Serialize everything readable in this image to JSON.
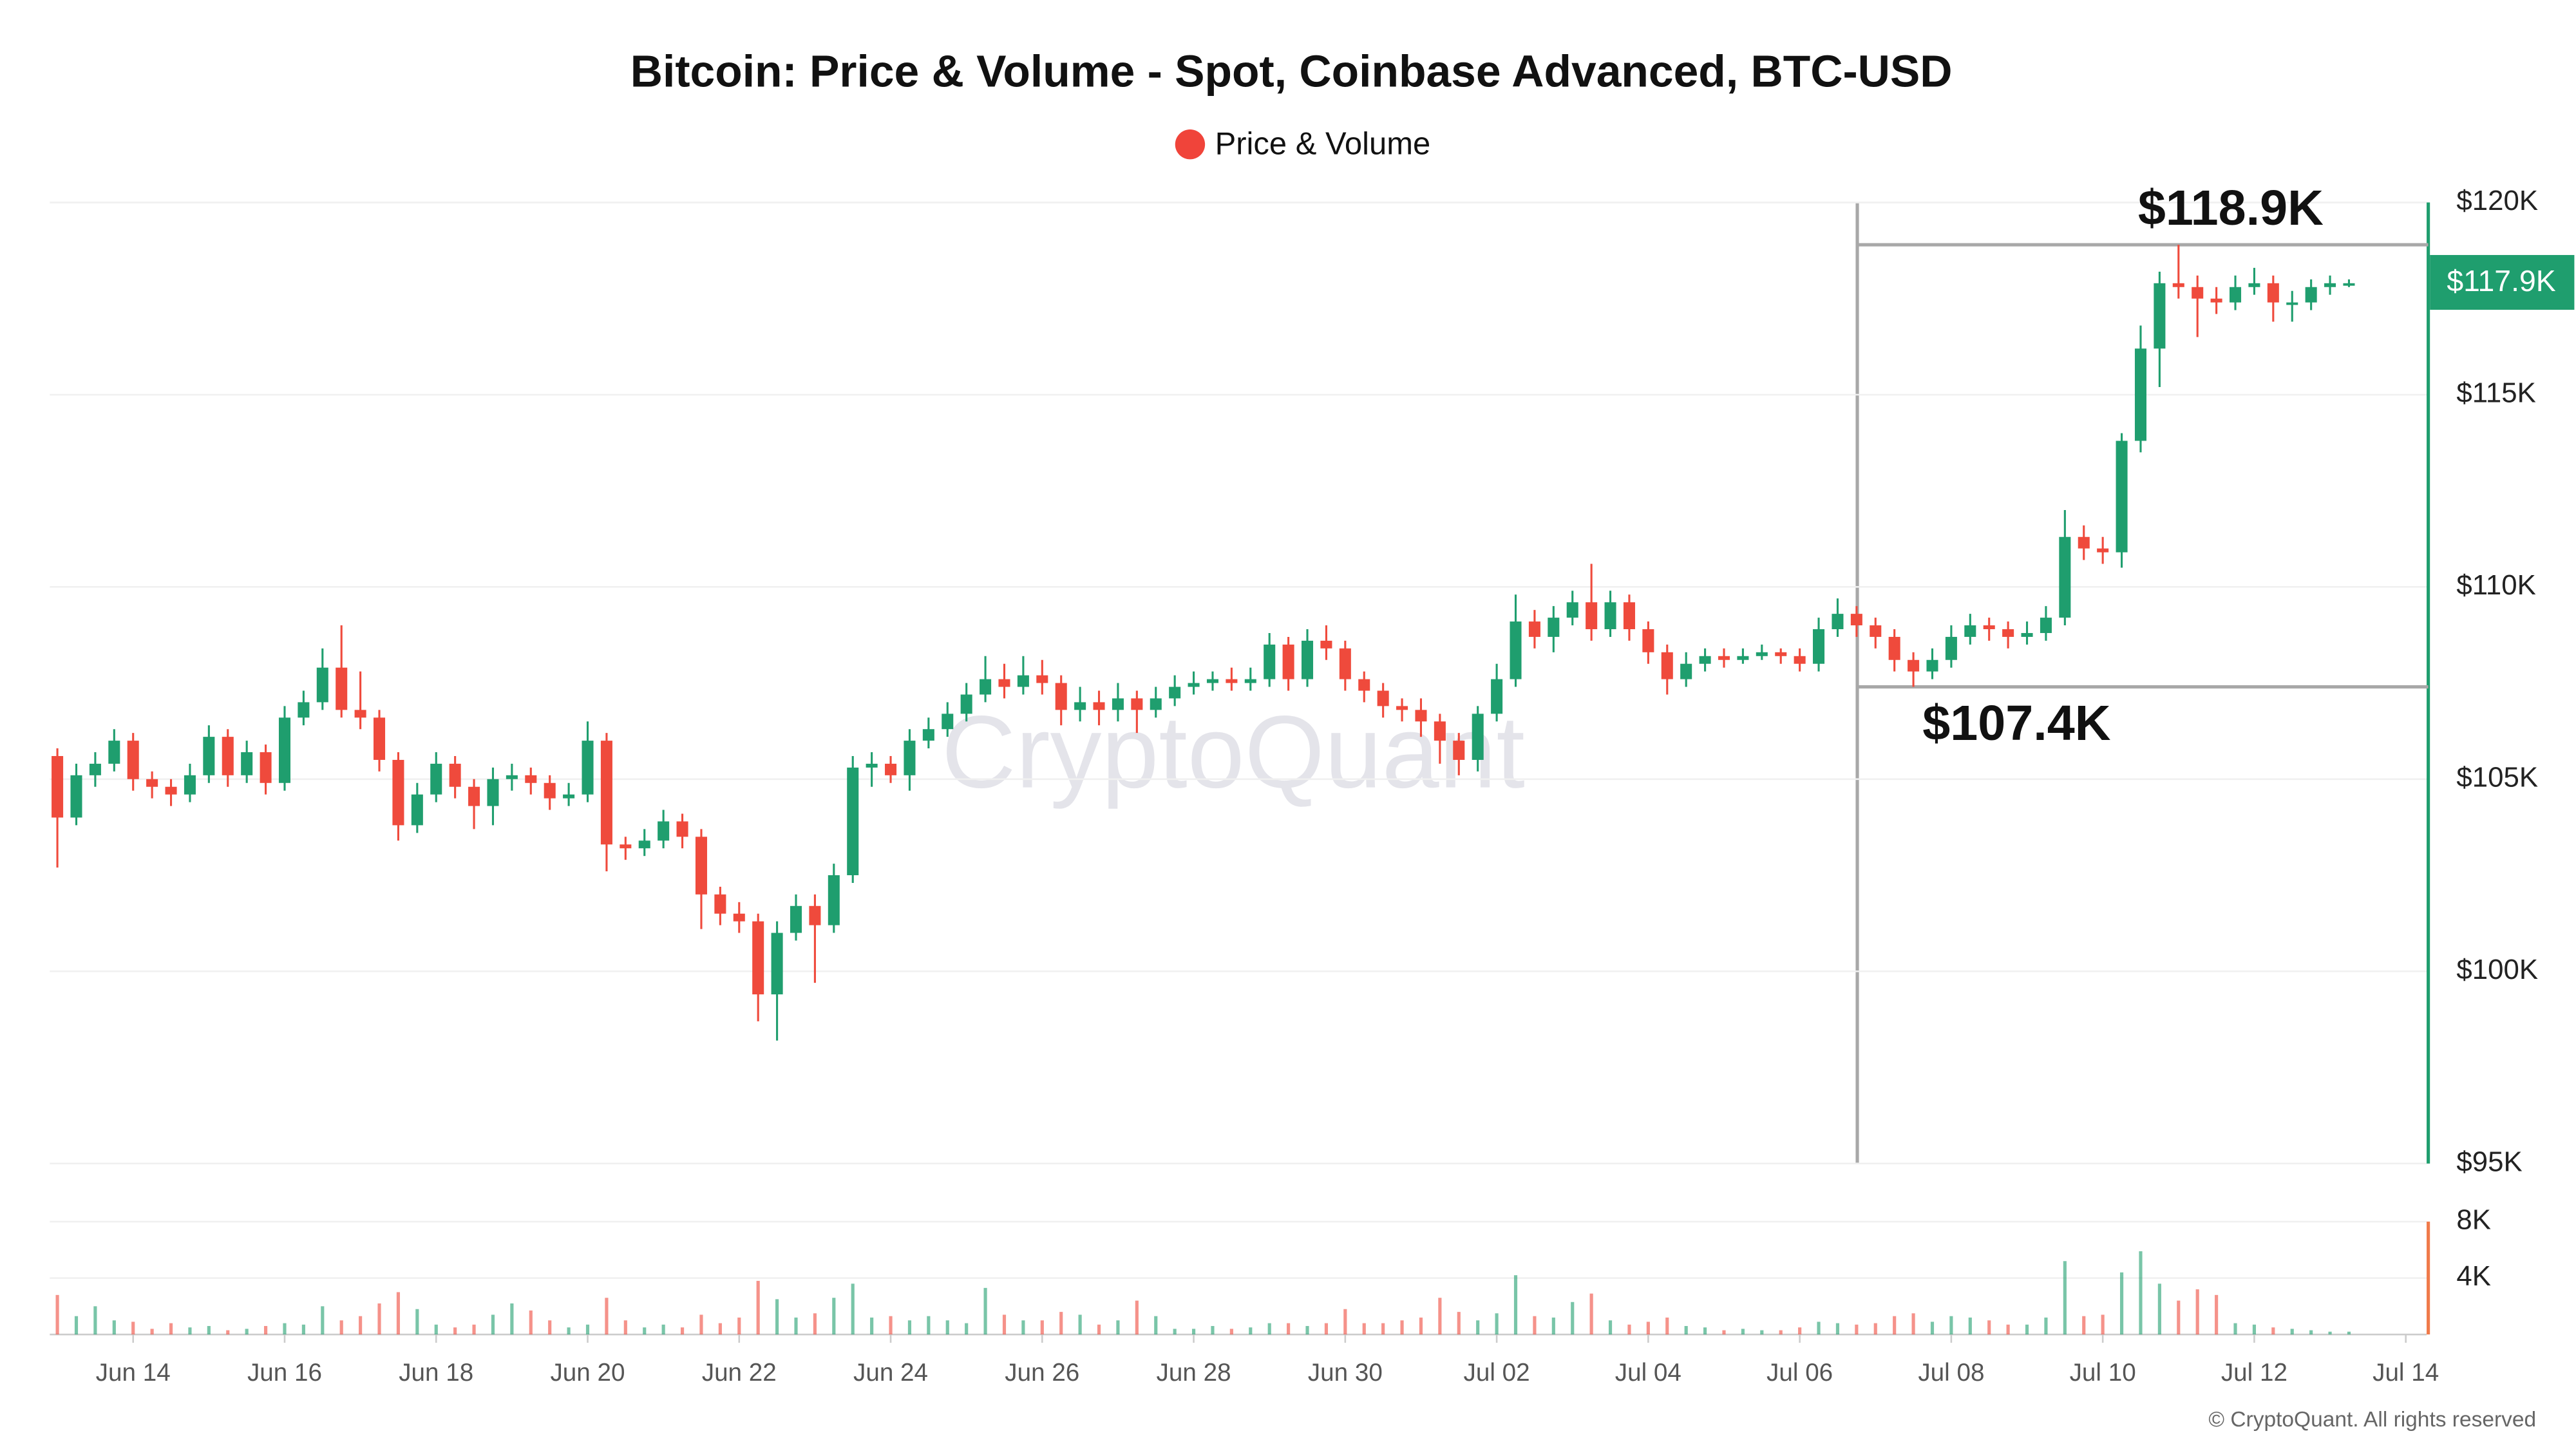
{
  "chart_data": {
    "type": "candlestick",
    "title": "Bitcoin: Price & Volume - Spot, Coinbase Advanced, BTC-USD",
    "watermark": "CryptoQuant",
    "copyright": "© CryptoQuant. All rights reserved",
    "up_color": "#1f9e6e",
    "down_color": "#ef4a3c",
    "categories": [
      null,
      null,
      null,
      null,
      null,
      null,
      null,
      null,
      null,
      null,
      null,
      null,
      null,
      null,
      null,
      null,
      null,
      null,
      null,
      null,
      null,
      null,
      null,
      null,
      null,
      null,
      null,
      null,
      null,
      null,
      null,
      null,
      null,
      null,
      null,
      null,
      null,
      null,
      null,
      null,
      null,
      null,
      null,
      null,
      null,
      null,
      null,
      null,
      null,
      null,
      null,
      null,
      null,
      null,
      null,
      null,
      null,
      null,
      null,
      null,
      null,
      null,
      null,
      null,
      null,
      null,
      null,
      null,
      null,
      null,
      null,
      null,
      null,
      null,
      null,
      null,
      null,
      null,
      null,
      null,
      null,
      null,
      null,
      null,
      null,
      null,
      null,
      null,
      null,
      null,
      null,
      null,
      null,
      null,
      null,
      null,
      null,
      null,
      null,
      null,
      null,
      null,
      null,
      null,
      null,
      null,
      null,
      null,
      null,
      null,
      null,
      null,
      null,
      null,
      null,
      null,
      null,
      null,
      null,
      null,
      null,
      null
    ],
    "xlim": [
      -0.4,
      125.1
    ],
    "xticks": [
      {
        "value": 4,
        "label": "Jun 14"
      },
      {
        "value": 12,
        "label": "Jun 16"
      },
      {
        "value": 20,
        "label": "Jun 18"
      },
      {
        "value": 28,
        "label": "Jun 20"
      },
      {
        "value": 36,
        "label": "Jun 22"
      },
      {
        "value": 44,
        "label": "Jun 24"
      },
      {
        "value": 52,
        "label": "Jun 26"
      },
      {
        "value": 60,
        "label": "Jun 28"
      },
      {
        "value": 68,
        "label": "Jun 30"
      },
      {
        "value": 76,
        "label": "Jul 02"
      },
      {
        "value": 84,
        "label": "Jul 04"
      },
      {
        "value": 92,
        "label": "Jul 06"
      },
      {
        "value": 100,
        "label": "Jul 08"
      },
      {
        "value": 108,
        "label": "Jul 10"
      },
      {
        "value": 116,
        "label": "Jul 12"
      },
      {
        "value": 124,
        "label": "Jul 14"
      }
    ],
    "ylim": [
      95000,
      120000
    ],
    "yticks": [
      {
        "value": 95000,
        "label": "$95K"
      },
      {
        "value": 100000,
        "label": "$100K"
      },
      {
        "value": 105000,
        "label": "$105K"
      },
      {
        "value": 110000,
        "label": "$110K"
      },
      {
        "value": 115000,
        "label": "$115K"
      },
      {
        "value": 120000,
        "label": "$120K"
      }
    ],
    "y2lim": [
      0,
      8000
    ],
    "y2ticks": [
      {
        "value": 4000,
        "label": "4K"
      },
      {
        "value": 8000,
        "label": "8K"
      }
    ],
    "grid": true,
    "price_tag": {
      "value": 117900,
      "label": "$117.9K"
    },
    "annotations": [
      {
        "value": 118900,
        "label": "$118.9K"
      },
      {
        "value": 107400,
        "label": "$107.4K"
      }
    ],
    "series": [
      {
        "name": "Price & Volume",
        "color": "#f0443a",
        "open": [
          105600,
          104000,
          105100,
          105400,
          106000,
          105000,
          104800,
          104600,
          105100,
          106100,
          105100,
          105700,
          104900,
          106600,
          107000,
          107900,
          106800,
          106600,
          105500,
          103800,
          104600,
          105400,
          104800,
          104300,
          105000,
          105100,
          104900,
          104500,
          104600,
          106000,
          103300,
          103200,
          103400,
          103900,
          103500,
          102000,
          101500,
          101300,
          99400,
          101000,
          101700,
          101200,
          102500,
          105300,
          105400,
          105100,
          106000,
          106300,
          106700,
          107200,
          107600,
          107400,
          107700,
          107500,
          106800,
          107000,
          106800,
          107100,
          106800,
          107100,
          107400,
          107500,
          107600,
          107500,
          107600,
          108500,
          107600,
          108600,
          108400,
          107600,
          107300,
          106900,
          106800,
          106500,
          106000,
          105500,
          106700,
          107600,
          109100,
          108700,
          109200,
          109600,
          108900,
          109600,
          108900,
          108300,
          107600,
          108000,
          108200,
          108100,
          108200,
          108300,
          108200,
          108000,
          108900,
          109300,
          109000,
          108700,
          108100,
          107800,
          108100,
          108700,
          109000,
          108900,
          108700,
          108800,
          109200,
          111300,
          111000,
          110900,
          113800,
          116200,
          117900,
          117800,
          117500,
          117400,
          117800,
          117900,
          117400,
          117400,
          117800,
          117900
        ],
        "high": [
          105800,
          105400,
          105700,
          106300,
          106200,
          105200,
          105000,
          105400,
          106400,
          106300,
          106000,
          105900,
          106900,
          107300,
          108400,
          109000,
          107800,
          106800,
          105700,
          104900,
          105700,
          105600,
          105000,
          105300,
          105400,
          105300,
          105100,
          104900,
          106500,
          106200,
          103500,
          103700,
          104200,
          104100,
          103700,
          102200,
          101800,
          101500,
          101300,
          102000,
          102000,
          102800,
          105600,
          105700,
          105600,
          106300,
          106600,
          107000,
          107500,
          108200,
          108000,
          108200,
          108100,
          107700,
          107400,
          107300,
          107500,
          107300,
          107400,
          107700,
          107800,
          107800,
          107900,
          107900,
          108800,
          108700,
          108900,
          109000,
          108600,
          107800,
          107500,
          107100,
          107100,
          106700,
          106200,
          106900,
          108000,
          109800,
          109400,
          109500,
          109900,
          110600,
          109900,
          109800,
          109100,
          108500,
          108300,
          108400,
          108400,
          108400,
          108500,
          108400,
          108400,
          109200,
          109700,
          109500,
          109200,
          108900,
          108300,
          108400,
          109000,
          109300,
          109200,
          109100,
          109100,
          109500,
          112000,
          111600,
          111300,
          114000,
          116800,
          118200,
          118900,
          118100,
          117800,
          118100,
          118300,
          118100,
          117700,
          118000,
          118100,
          118000
        ],
        "low": [
          102700,
          103800,
          104800,
          105200,
          104700,
          104500,
          104300,
          104400,
          104900,
          104800,
          104900,
          104600,
          104700,
          106400,
          106800,
          106600,
          106300,
          105200,
          103400,
          103600,
          104400,
          104500,
          103700,
          103800,
          104700,
          104600,
          104200,
          104300,
          104400,
          102600,
          102900,
          103000,
          103200,
          103200,
          101100,
          101200,
          101000,
          98700,
          98200,
          100800,
          99700,
          101000,
          102300,
          104800,
          104900,
          104700,
          105800,
          106100,
          106500,
          107000,
          107100,
          107200,
          107200,
          106400,
          106500,
          106400,
          106500,
          106200,
          106600,
          106900,
          107200,
          107300,
          107300,
          107300,
          107400,
          107300,
          107400,
          108100,
          107300,
          107000,
          106600,
          106500,
          106100,
          105400,
          105100,
          105200,
          106500,
          107400,
          108400,
          108300,
          109000,
          108600,
          108700,
          108600,
          108000,
          107200,
          107400,
          107800,
          107900,
          108000,
          108100,
          108000,
          107800,
          107800,
          108700,
          108700,
          108400,
          107800,
          107400,
          107600,
          107900,
          108500,
          108600,
          108400,
          108500,
          108600,
          109000,
          110700,
          110600,
          110500,
          113500,
          115200,
          117500,
          116500,
          117100,
          117200,
          117600,
          116900,
          116900,
          117200,
          117600,
          117800
        ],
        "close": [
          104000,
          105100,
          105400,
          106000,
          105000,
          104800,
          104600,
          105100,
          106100,
          105100,
          105700,
          104900,
          106600,
          107000,
          107900,
          106800,
          106600,
          105500,
          103800,
          104600,
          105400,
          104800,
          104300,
          105000,
          105100,
          104900,
          104500,
          104600,
          106000,
          103300,
          103200,
          103400,
          103900,
          103500,
          102000,
          101500,
          101300,
          99400,
          101000,
          101700,
          101200,
          102500,
          105300,
          105400,
          105100,
          106000,
          106300,
          106700,
          107200,
          107600,
          107400,
          107700,
          107500,
          106800,
          107000,
          106800,
          107100,
          106800,
          107100,
          107400,
          107500,
          107600,
          107500,
          107600,
          108500,
          107600,
          108600,
          108400,
          107600,
          107300,
          106900,
          106800,
          106500,
          106000,
          105500,
          106700,
          107600,
          109100,
          108700,
          109200,
          109600,
          108900,
          109600,
          108900,
          108300,
          107600,
          108000,
          108200,
          108100,
          108200,
          108300,
          108200,
          108000,
          108900,
          109300,
          109000,
          108700,
          108100,
          107800,
          108100,
          108700,
          109000,
          108900,
          108700,
          108800,
          109200,
          111300,
          111000,
          110900,
          113800,
          116200,
          117900,
          117800,
          117500,
          117400,
          117800,
          117900,
          117400,
          117400,
          117800,
          117900,
          117900
        ],
        "volume": [
          2800,
          1300,
          2000,
          1000,
          900,
          400,
          800,
          500,
          600,
          300,
          400,
          600,
          800,
          700,
          2000,
          1000,
          1300,
          2200,
          3000,
          1800,
          700,
          500,
          700,
          1400,
          2200,
          1700,
          1000,
          500,
          700,
          2600,
          1000,
          500,
          700,
          500,
          1400,
          800,
          1200,
          3800,
          2500,
          1200,
          1500,
          2600,
          3600,
          1200,
          1300,
          1000,
          1300,
          1000,
          800,
          3300,
          1400,
          1000,
          1000,
          1600,
          1400,
          700,
          1000,
          2400,
          1300,
          400,
          400,
          600,
          400,
          500,
          800,
          800,
          600,
          800,
          1800,
          800,
          800,
          1000,
          1200,
          2600,
          1600,
          1000,
          1500,
          4200,
          1300,
          1200,
          2300,
          2900,
          1000,
          700,
          900,
          1200,
          600,
          500,
          300,
          400,
          300,
          300,
          500,
          900,
          800,
          700,
          800,
          1300,
          1500,
          900,
          1300,
          1200,
          1000,
          700,
          700,
          1200,
          5200,
          1300,
          1400,
          4400,
          5900,
          3600,
          2400,
          3200,
          2800,
          800,
          700,
          500,
          400,
          300,
          200,
          200
        ]
      }
    ]
  }
}
